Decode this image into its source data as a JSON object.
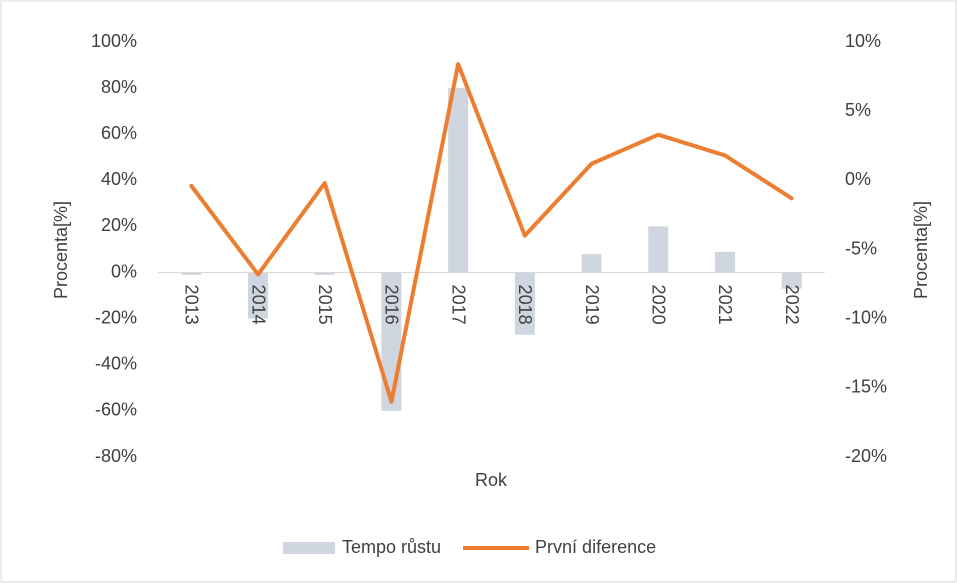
{
  "chart_data": {
    "type": "bar_line",
    "xlabel": "Rok",
    "ylabel": "Procenta[%]",
    "y2label": "Procenta[%]",
    "categories": [
      "2013",
      "2014",
      "2015",
      "2016",
      "2017",
      "2018",
      "2019",
      "2020",
      "2021",
      "2022"
    ],
    "series": [
      {
        "name": "Tempo růstu",
        "type": "bar",
        "color": "#cfd6df",
        "values": [
          -1,
          -20,
          -1,
          -60,
          80,
          -27,
          8,
          20,
          9,
          -7
        ]
      },
      {
        "name": "První diference",
        "type": "line",
        "axis": "y2",
        "color": "#ed7d31",
        "values": [
          -0.4,
          -6.8,
          -0.2,
          -16.0,
          8.4,
          -4.0,
          1.2,
          3.3,
          1.8,
          -1.3
        ]
      }
    ],
    "ylim": [
      -80,
      100
    ],
    "yticks": [
      {
        "value": -80,
        "label": "-80%"
      },
      {
        "value": -60,
        "label": "-60%"
      },
      {
        "value": -40,
        "label": "-40%"
      },
      {
        "value": -20,
        "label": "-20%"
      },
      {
        "value": 0,
        "label": "0%"
      },
      {
        "value": 20,
        "label": "20%"
      },
      {
        "value": 40,
        "label": "40%"
      },
      {
        "value": 60,
        "label": "60%"
      },
      {
        "value": 80,
        "label": "80%"
      },
      {
        "value": 100,
        "label": "100%"
      }
    ],
    "y2lim": [
      -20,
      10
    ],
    "y2ticks": [
      {
        "value": -20,
        "label": "-20%"
      },
      {
        "value": -15,
        "label": "-15%"
      },
      {
        "value": -10,
        "label": "-10%"
      },
      {
        "value": -5,
        "label": "-5%"
      },
      {
        "value": 0,
        "label": "0%"
      },
      {
        "value": 5,
        "label": "5%"
      },
      {
        "value": 10,
        "label": "10%"
      }
    ],
    "grid": false,
    "legend": "bottom"
  }
}
